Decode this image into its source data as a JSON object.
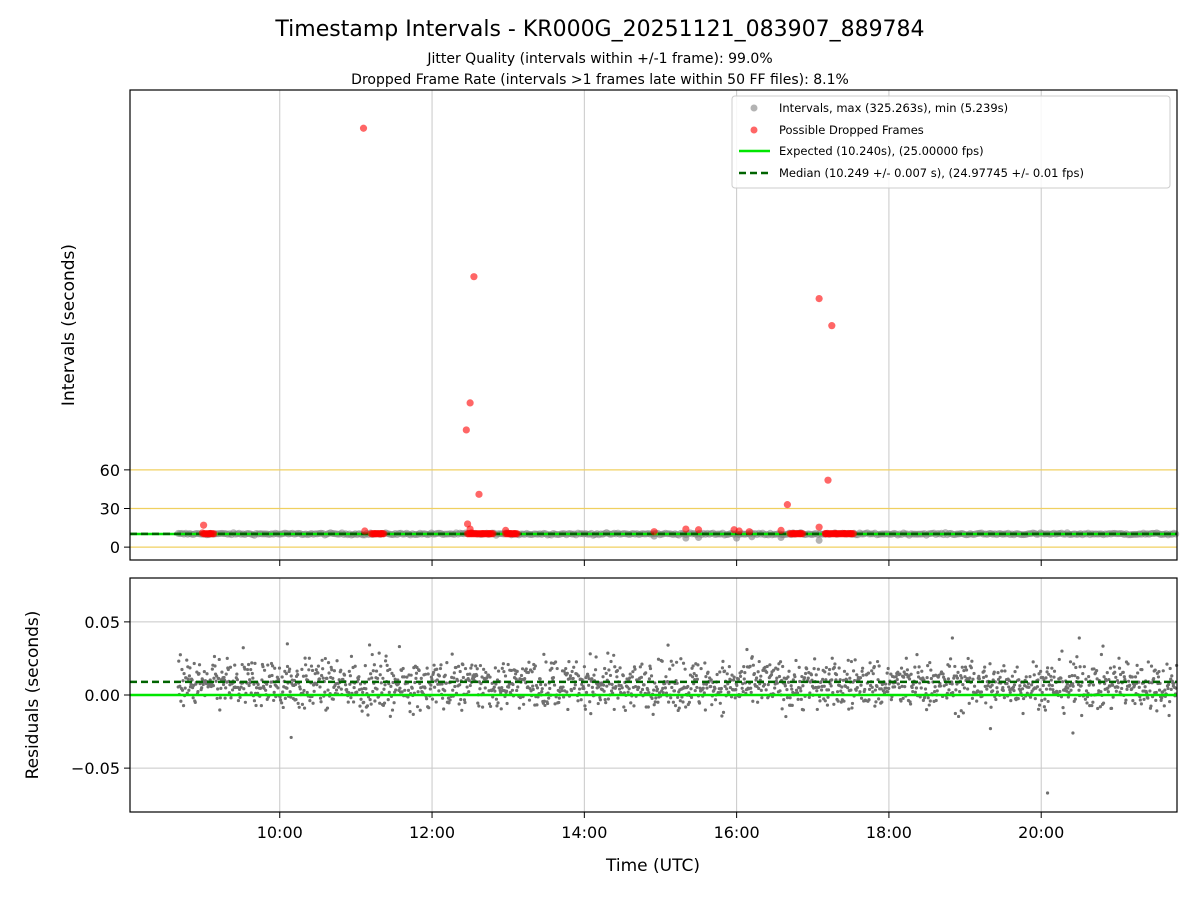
{
  "chart_data": [
    {
      "type": "scatter",
      "panel": "intervals",
      "title": "Timestamp Intervals - KR000G_20251121_083907_889784",
      "subtitle_lines": [
        "Jitter Quality (intervals within +/-1 frame): 99.0%",
        "Dropped Frame Rate (intervals >1 frames late within 50 FF files): 8.1%"
      ],
      "ylabel": "Intervals (seconds)",
      "xlim": [
        "08:02",
        "21:47"
      ],
      "ylim": [
        -10,
        355
      ],
      "grid": "vertical",
      "yticks": [
        0,
        30,
        60
      ],
      "ytick_labels": [
        "0",
        "30",
        "60"
      ],
      "hlines_gold": [
        0,
        30,
        60
      ],
      "legend": "top-right",
      "legend_entries": [
        "Intervals, max (325.263s), min (5.239s)",
        "Possible Dropped Frames",
        "Expected (10.240s), (25.00000 fps)",
        "Median (10.249 +/- 0.007 s), (24.97745 +/- 0.01 fps)"
      ],
      "expected": 10.24,
      "median": 10.249,
      "intervals_range": [
        "08:40",
        "21:47"
      ],
      "series": [
        {
          "name": "Possible Dropped Frames",
          "color": "#ff0000",
          "points": [
            {
              "x": "09:00",
              "y": 17
            },
            {
              "x": "08:59",
              "y": 11
            },
            {
              "x": "09:05",
              "y": 10.5
            },
            {
              "x": "11:06",
              "y": 325.3
            },
            {
              "x": "11:07",
              "y": 12.5
            },
            {
              "x": "11:15",
              "y": 10.5
            },
            {
              "x": "11:20",
              "y": 10.5
            },
            {
              "x": "12:28",
              "y": 18
            },
            {
              "x": "12:30",
              "y": 14
            },
            {
              "x": "12:31",
              "y": 11
            },
            {
              "x": "12:27",
              "y": 91
            },
            {
              "x": "12:30",
              "y": 112
            },
            {
              "x": "12:33",
              "y": 210
            },
            {
              "x": "12:37",
              "y": 41
            },
            {
              "x": "12:40",
              "y": 10.5
            },
            {
              "x": "12:45",
              "y": 10.5
            },
            {
              "x": "12:58",
              "y": 13
            },
            {
              "x": "13:02",
              "y": 10.5
            },
            {
              "x": "13:05",
              "y": 10.5
            },
            {
              "x": "14:55",
              "y": 12
            },
            {
              "x": "15:20",
              "y": 14
            },
            {
              "x": "15:30",
              "y": 13.5
            },
            {
              "x": "15:58",
              "y": 13.5
            },
            {
              "x": "16:02",
              "y": 12.5
            },
            {
              "x": "16:10",
              "y": 12
            },
            {
              "x": "16:35",
              "y": 13
            },
            {
              "x": "16:40",
              "y": 33
            },
            {
              "x": "16:45",
              "y": 10.5
            },
            {
              "x": "16:50",
              "y": 10.5
            },
            {
              "x": "17:05",
              "y": 193
            },
            {
              "x": "17:05",
              "y": 15.5
            },
            {
              "x": "17:10",
              "y": 10.5
            },
            {
              "x": "17:12",
              "y": 52
            },
            {
              "x": "17:15",
              "y": 172
            },
            {
              "x": "17:18",
              "y": 10.5
            },
            {
              "x": "17:25",
              "y": 10.5
            },
            {
              "x": "17:30",
              "y": 10.5
            }
          ]
        }
      ]
    },
    {
      "type": "scatter",
      "panel": "residuals",
      "ylabel": "Residuals (seconds)",
      "xlabel": "Time (UTC)",
      "xlim": [
        "08:02",
        "21:47"
      ],
      "ylim": [
        -0.08,
        0.08
      ],
      "grid": "both",
      "yticks": [
        -0.05,
        0.0,
        0.05
      ],
      "ytick_labels": [
        "−0.05",
        "0.00",
        "0.05"
      ],
      "xticks": [
        "10:00",
        "12:00",
        "14:00",
        "16:00",
        "18:00",
        "20:00"
      ],
      "xtick_labels": [
        "10:00",
        "12:00",
        "14:00",
        "16:00",
        "18:00",
        "20:00"
      ],
      "expected_residual": 0.0,
      "median_residual": 0.009,
      "residual_band": {
        "center": 0.006,
        "spread": 0.015
      },
      "outliers": [
        {
          "x": "18:50",
          "y": 0.039
        },
        {
          "x": "20:05",
          "y": -0.067
        },
        {
          "x": "10:06",
          "y": 0.035
        },
        {
          "x": "20:30",
          "y": 0.039
        },
        {
          "x": "10:09",
          "y": -0.029
        },
        {
          "x": "19:20",
          "y": -0.023
        },
        {
          "x": "20:25",
          "y": -0.026
        }
      ]
    }
  ],
  "colors": {
    "expected": "#00e600",
    "median": "#006400",
    "intervals": "#808080",
    "dropped": "#ff0000",
    "gold_lines": "#f0d060",
    "grid": "#c8c8c8"
  }
}
